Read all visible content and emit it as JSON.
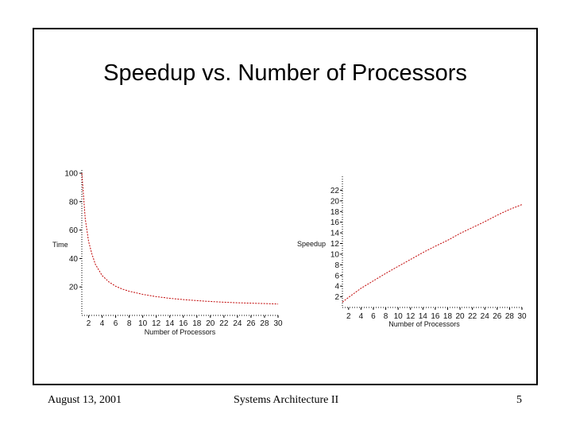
{
  "slide": {
    "title": "Speedup vs. Number of Processors",
    "footer_date": "August 13, 2001",
    "footer_course": "Systems Architecture II",
    "footer_page": "5"
  },
  "colors": {
    "curve": "#c00000",
    "axis": "#000000"
  },
  "chart_data": [
    {
      "type": "line",
      "title": "",
      "xlabel": "Number of Processors",
      "ylabel": "Time",
      "xlim": [
        1,
        30
      ],
      "ylim": [
        0,
        100
      ],
      "x_ticks": [
        "2",
        "4",
        "6",
        "8",
        "10",
        "12",
        "14",
        "16",
        "18",
        "20",
        "22",
        "24",
        "26",
        "28",
        "30"
      ],
      "y_ticks": [
        "20",
        "40",
        "60",
        "80",
        "100"
      ],
      "series": [
        {
          "x": [
            1,
            1.5,
            2,
            2.5,
            3,
            4,
            5,
            6,
            7,
            8,
            10,
            12,
            14,
            16,
            18,
            20,
            22,
            24,
            26,
            28,
            30
          ],
          "y": [
            100,
            68,
            52,
            43,
            36,
            28,
            23.5,
            20.5,
            18.5,
            17,
            14.8,
            13.2,
            12,
            11.1,
            10.4,
            9.8,
            9.3,
            8.9,
            8.6,
            8.3,
            8
          ]
        }
      ]
    },
    {
      "type": "line",
      "title": "",
      "xlabel": "Number of Processors",
      "ylabel": "Speedup",
      "xlim": [
        1,
        30
      ],
      "ylim": [
        0,
        24
      ],
      "x_ticks": [
        "2",
        "4",
        "6",
        "8",
        "10",
        "12",
        "14",
        "16",
        "18",
        "20",
        "22",
        "24",
        "26",
        "28",
        "30"
      ],
      "y_ticks": [
        "2",
        "4",
        "6",
        "8",
        "10",
        "12",
        "14",
        "16",
        "18",
        "20",
        "22"
      ],
      "series": [
        {
          "x": [
            1,
            2,
            4,
            6,
            8,
            10,
            12,
            14,
            16,
            18,
            20,
            22,
            24,
            26,
            28,
            30
          ],
          "y": [
            1.0,
            1.9,
            3.6,
            5.0,
            6.4,
            7.7,
            9.0,
            10.3,
            11.5,
            12.6,
            13.9,
            15.0,
            16.1,
            17.3,
            18.4,
            19.3
          ]
        }
      ]
    }
  ]
}
